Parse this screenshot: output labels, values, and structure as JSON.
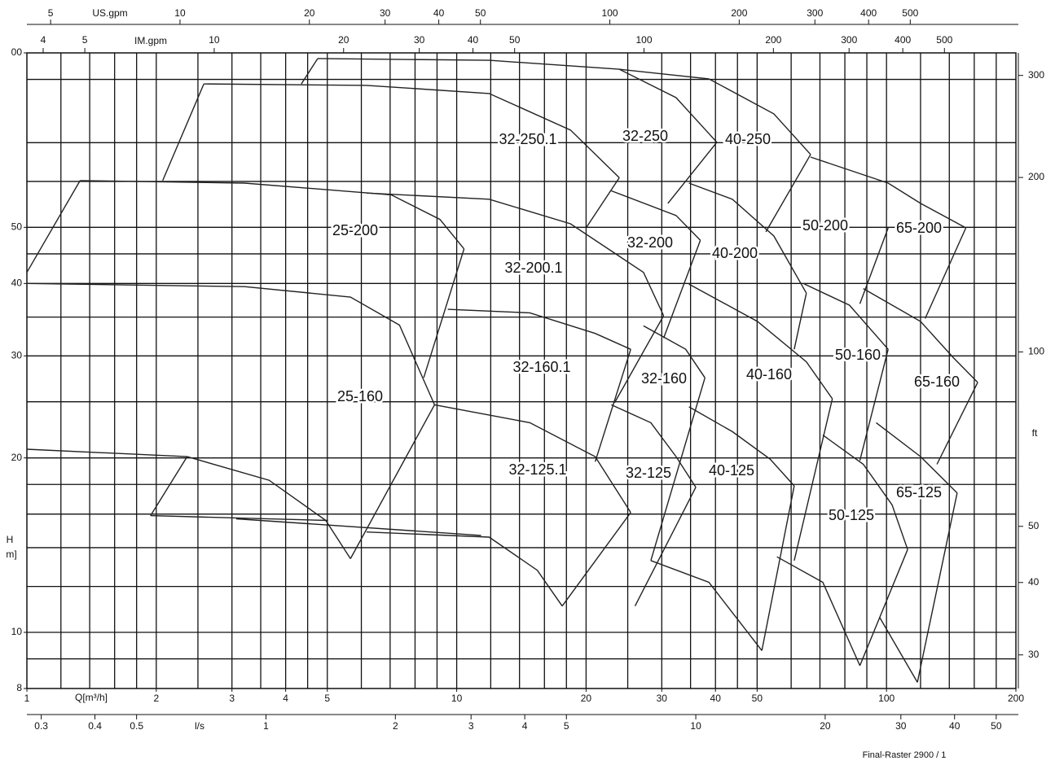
{
  "chart_data": {
    "type": "pump-range",
    "xlabel": "Q[m³/h]",
    "ylabel": "H",
    "ylabel_unit": "m]",
    "xlim": [
      1,
      200
    ],
    "ylim": [
      8,
      100
    ],
    "log_x": true,
    "log_y": true,
    "xticks": [
      1,
      2,
      3,
      4,
      5,
      10,
      20,
      30,
      40,
      50,
      100,
      200
    ],
    "yticks": [
      {
        "value": 100,
        "label": "00"
      },
      50,
      40,
      30,
      20,
      10,
      8
    ],
    "xgrid": [
      1.2,
      1.4,
      1.6,
      1.8,
      2,
      2.5,
      3,
      3.5,
      4,
      4.5,
      5,
      6,
      7,
      8,
      9,
      10,
      12,
      14,
      16,
      18,
      20,
      25,
      30,
      35,
      40,
      45,
      50,
      60,
      70,
      80,
      90,
      100,
      120,
      140,
      160,
      180
    ],
    "ygrid": [
      90,
      70,
      60,
      50,
      45,
      40,
      35,
      30,
      25,
      20,
      18,
      16,
      14,
      12,
      10,
      9
    ],
    "us_gpm": {
      "label": "US.gpm",
      "lim": [
        4.403,
        880.6
      ],
      "ticks": [
        5,
        10,
        20,
        30,
        40,
        50,
        100,
        200,
        300,
        400,
        500
      ]
    },
    "im_gpm": {
      "label": "IM.gpm",
      "lim": [
        3.666,
        733.2
      ],
      "ticks": [
        4,
        5,
        10,
        20,
        30,
        40,
        50,
        100,
        200,
        300,
        400,
        500
      ]
    },
    "ls": {
      "label": "l/s",
      "lim": [
        0.2778,
        55.56
      ],
      "ticks": [
        0.3,
        0.4,
        0.5,
        1,
        2,
        3,
        4,
        5,
        10,
        20,
        30,
        40,
        50
      ]
    },
    "y2label": "ft",
    "y2lim": [
      26.25,
      328.1
    ],
    "y2ticks": [
      300,
      200,
      100,
      50,
      40,
      30
    ],
    "footer": "Final-Raster 2900 / 1",
    "color": "#222222",
    "labels": [
      "32-250.1",
      "32-250",
      "40-250",
      "50-200",
      "65-200",
      "25-200",
      "32-200",
      "40-200",
      "32-200.1",
      "32-160.1",
      "32-160",
      "40-160",
      "50-160",
      "65-160",
      "25-160",
      "32-125.1",
      "32-125",
      "40-125",
      "65-125",
      "50-125"
    ],
    "curves": [
      {
        "q": [
          1,
          1.33
        ],
        "h": [
          41.8,
          60.2
        ]
      },
      {
        "q": [
          1.33,
          3.21,
          7.04,
          9.14,
          10.4
        ],
        "h": [
          60.2,
          59.6,
          56.9,
          51.6,
          45.9
        ]
      },
      {
        "q": [
          10.4,
          8.38
        ],
        "h": [
          45.9,
          27.5
        ]
      },
      {
        "q": [
          1,
          3.21,
          5.66,
          7.36,
          8.88
        ],
        "h": [
          40,
          39.5,
          37.9,
          33.9,
          24.7
        ]
      },
      {
        "q": [
          8.88,
          5.66
        ],
        "h": [
          24.7,
          13.4
        ]
      },
      {
        "q": [
          1,
          2.36,
          3.66,
          4.96,
          5.66
        ],
        "h": [
          20.7,
          20.1,
          18.3,
          15.6,
          13.4
        ]
      },
      {
        "q": [
          1.94,
          2.36
        ],
        "h": [
          15.9,
          20.1
        ]
      },
      {
        "q": [
          1.94,
          5.02
        ],
        "h": [
          15.9,
          15.6
        ]
      },
      {
        "q": [
          3.07,
          11.4
        ],
        "h": [
          15.7,
          14.7
        ]
      },
      {
        "q": [
          6.17,
          11.9,
          15.4,
          17.6
        ],
        "h": [
          14.9,
          14.6,
          12.8,
          11.1
        ]
      },
      {
        "q": [
          8.88,
          14.8,
          21,
          25.4
        ],
        "h": [
          24.7,
          23,
          20.1,
          16.1
        ]
      },
      {
        "q": [
          25.4,
          17.6
        ],
        "h": [
          16.1,
          11.1
        ]
      },
      {
        "q": [
          9.53,
          14.8,
          21,
          25.4
        ],
        "h": [
          36.1,
          35.6,
          32.8,
          30.8
        ]
      },
      {
        "q": [
          25.4,
          21
        ],
        "h": [
          30.8,
          19.7
        ]
      },
      {
        "q": [
          6.17,
          11.9,
          18.4,
          27.2,
          30.3
        ],
        "h": [
          57.3,
          55.9,
          50.7,
          41.8,
          35.2
        ]
      },
      {
        "q": [
          30.3,
          23.3
        ],
        "h": [
          35.2,
          24.9
        ]
      },
      {
        "q": [
          2.07,
          2.58
        ],
        "h": [
          60.2,
          88.4
        ]
      },
      {
        "q": [
          2.58,
          6.17,
          11.9,
          18.4,
          23.9
        ],
        "h": [
          88.4,
          87.9,
          85.1,
          73.6,
          60.9
        ]
      },
      {
        "q": [
          23.9,
          20
        ],
        "h": [
          60.9,
          49.9
        ]
      },
      {
        "q": [
          4.35,
          4.75
        ],
        "h": [
          88.4,
          97.8
        ]
      },
      {
        "q": [
          4.75,
          11.9,
          23.9,
          32.4,
          40.3
        ],
        "h": [
          97.8,
          97.1,
          93.7,
          83.7,
          70.1
        ]
      },
      {
        "q": [
          40.3,
          31
        ],
        "h": [
          70.1,
          55
        ]
      },
      {
        "q": [
          23.9,
          38.6,
          54.7,
          66.6
        ],
        "h": [
          93.7,
          90.2,
          78.5,
          66.8
        ]
      },
      {
        "q": [
          66.6,
          52.4
        ],
        "h": [
          66.8,
          49.1
        ]
      },
      {
        "q": [
          66.6,
          100.9,
          120,
          153
        ],
        "h": [
          66.1,
          59.6,
          55,
          49.9
        ]
      },
      {
        "q": [
          153,
          123
        ],
        "h": [
          49.9,
          34.8
        ]
      },
      {
        "q": [
          100.9,
          86.7
        ],
        "h": [
          49.9,
          36.9
        ]
      },
      {
        "q": [
          22.9,
          32.4,
          36.9
        ],
        "h": [
          57.8,
          52.4,
          47.5
        ]
      },
      {
        "q": [
          36.9,
          30.3
        ],
        "h": [
          47.5,
          32.2
        ]
      },
      {
        "q": [
          34.7,
          43.8,
          54.7,
          65.1
        ],
        "h": [
          59.6,
          55.9,
          48.3,
          38.5
        ]
      },
      {
        "q": [
          65.1,
          61
        ],
        "h": [
          38.5,
          30.8
        ]
      },
      {
        "q": [
          34.7,
          50.1,
          65.1,
          74.8
        ],
        "h": [
          39.9,
          34.4,
          29.3,
          25.3
        ]
      },
      {
        "q": [
          74.8,
          61
        ],
        "h": [
          25.3,
          13.3
        ]
      },
      {
        "q": [
          27.2,
          34.1,
          37.8
        ],
        "h": [
          33.8,
          30.8,
          27.5
        ]
      },
      {
        "q": [
          37.8,
          28.3
        ],
        "h": [
          27.5,
          13.3
        ]
      },
      {
        "q": [
          22.9,
          28.3,
          32.4,
          36
        ],
        "h": [
          24.7,
          23,
          20.1,
          17.8
        ]
      },
      {
        "q": [
          36,
          26
        ],
        "h": [
          17.8,
          11.1
        ]
      },
      {
        "q": [
          34.7,
          43.8,
          53.6,
          61
        ],
        "h": [
          24.5,
          22.2,
          19.9,
          17.9
        ]
      },
      {
        "q": [
          61,
          51.3
        ],
        "h": [
          17.9,
          9.3
        ]
      },
      {
        "q": [
          28.3,
          38.6,
          51.3
        ],
        "h": [
          13.3,
          12.2,
          9.3
        ]
      },
      {
        "q": [
          64,
          82,
          100.9
        ],
        "h": [
          40,
          36.7,
          30.8
        ]
      },
      {
        "q": [
          100.9,
          86.7
        ],
        "h": [
          30.8,
          19.8
        ]
      },
      {
        "q": [
          88.3,
          120,
          143,
          163
        ],
        "h": [
          39.2,
          34.4,
          29.8,
          27
        ]
      },
      {
        "q": [
          163,
          131
        ],
        "h": [
          27,
          19.5
        ]
      },
      {
        "q": [
          71.1,
          88.3,
          103,
          112
        ],
        "h": [
          21.9,
          19.5,
          16.6,
          13.9
        ]
      },
      {
        "q": [
          112,
          86.7
        ],
        "h": [
          13.9,
          8.76
        ]
      },
      {
        "q": [
          94.6,
          120,
          146
        ],
        "h": [
          23,
          20.1,
          17.4
        ]
      },
      {
        "q": [
          146,
          118
        ],
        "h": [
          17.4,
          8.2
        ]
      },
      {
        "q": [
          55.6,
          71.1,
          86.7
        ],
        "h": [
          13.5,
          12.2,
          8.76
        ]
      },
      {
        "q": [
          96.5,
          118
        ],
        "h": [
          10.6,
          8.2
        ]
      }
    ]
  }
}
